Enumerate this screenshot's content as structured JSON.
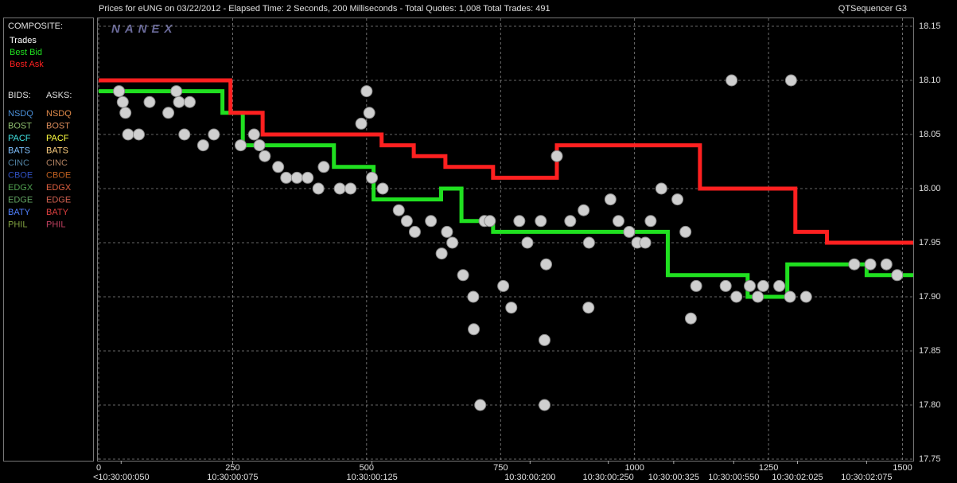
{
  "chart_data": {
    "type": "scatter",
    "title": "Prices for  eUNG  on  03/22/2012  -  Elapsed Time: 2 Seconds, 200 Milliseconds  -  Total Quotes: 1,008  Total Trades: 491",
    "subtitle": "QTSequencer G3",
    "logo": "NANEX",
    "xlim": [
      0,
      1520
    ],
    "ylim": [
      17.75,
      18.15
    ],
    "xticks": [
      0,
      250,
      500,
      750,
      1000,
      1250,
      1500
    ],
    "yticks": [
      18.15,
      {
        "value": 18.1,
        "label": "18.10"
      },
      18.05,
      {
        "value": 18.0,
        "label": "18.00"
      },
      17.95,
      {
        "value": 17.9,
        "label": "17.90"
      },
      17.85,
      {
        "value": 17.8,
        "label": "17.80"
      },
      17.75
    ],
    "x_time_labels": [
      {
        "value": 42,
        "label": "<10:30:00:050"
      },
      {
        "value": 250,
        "label": "10:30:00:075"
      },
      {
        "value": 510,
        "label": "10:30:00:125"
      },
      {
        "value": 805,
        "label": "10:30:00:200"
      },
      {
        "value": 951,
        "label": "10:30:00:250"
      },
      {
        "value": 1073,
        "label": "10:30:00:325"
      },
      {
        "value": 1185,
        "label": "10:30:00:550"
      },
      {
        "value": 1304,
        "label": "10:30:02:025"
      },
      {
        "value": 1433,
        "label": "10:30:02:075"
      }
    ],
    "grid": true,
    "legend": {
      "composite_title": "COMPOSITE:",
      "bids_title": "BIDS:",
      "asks_title": "ASKS:",
      "exchanges": [
        {
          "bid": "NSDQ",
          "ask": "NSDQ",
          "bid_color": "#4a8fd8",
          "ask_color": "#e08a4a"
        },
        {
          "bid": "BOST",
          "ask": "BOST",
          "bid_color": "#8fbf6f",
          "ask_color": "#d88a5a"
        },
        {
          "bid": "PACF",
          "ask": "PACF",
          "bid_color": "#40e0e0",
          "ask_color": "#ffff40"
        },
        {
          "bid": "BATS",
          "ask": "BATS",
          "bid_color": "#80c0ff",
          "ask_color": "#ffd080"
        },
        {
          "bid": "CINC",
          "ask": "CINC",
          "bid_color": "#5080a0",
          "ask_color": "#b08060"
        },
        {
          "bid": "CBOE",
          "ask": "CBOE",
          "bid_color": "#3050c0",
          "ask_color": "#c06020"
        },
        {
          "bid": "EDGX",
          "ask": "EDGX",
          "bid_color": "#50a050",
          "ask_color": "#e06040"
        },
        {
          "bid": "EDGE",
          "ask": "EDGE",
          "bid_color": "#60a060",
          "ask_color": "#d06050"
        },
        {
          "bid": "BATY",
          "ask": "BATY",
          "bid_color": "#5080ff",
          "ask_color": "#e04040"
        },
        {
          "bid": "PHIL",
          "ask": "PHIL",
          "bid_color": "#80a040",
          "ask_color": "#c04060"
        }
      ]
    },
    "series": [
      {
        "name": "Trades",
        "color": "#ffffff",
        "kind": "scatter",
        "x": [
          38,
          45,
          50,
          55,
          75,
          95,
          130,
          145,
          150,
          160,
          170,
          195,
          215,
          265,
          290,
          300,
          310,
          335,
          350,
          370,
          390,
          410,
          420,
          450,
          470,
          490,
          500,
          505,
          510,
          530,
          560,
          575,
          590,
          620,
          640,
          650,
          660,
          680,
          699,
          700,
          712,
          720,
          730,
          755,
          770,
          785,
          800,
          825,
          832,
          835,
          832,
          855,
          880,
          905,
          914,
          915,
          955,
          970,
          990,
          1005,
          1020,
          1030,
          1050,
          1080,
          1095,
          1115,
          1105,
          1170,
          1181,
          1190,
          1215,
          1230,
          1240,
          1270,
          1292,
          1290,
          1320,
          1410,
          1440,
          1470,
          1490
        ],
        "values": [
          18.09,
          18.08,
          18.07,
          18.05,
          18.05,
          18.08,
          18.07,
          18.09,
          18.08,
          18.05,
          18.08,
          18.04,
          18.05,
          18.04,
          18.05,
          18.04,
          18.03,
          18.02,
          18.01,
          18.01,
          18.01,
          18.0,
          18.02,
          18.0,
          18.0,
          18.06,
          18.09,
          18.07,
          18.01,
          18.0,
          17.98,
          17.97,
          17.96,
          17.97,
          17.94,
          17.96,
          17.95,
          17.92,
          17.9,
          17.87,
          17.8,
          17.97,
          17.97,
          17.91,
          17.89,
          17.97,
          17.95,
          17.97,
          17.86,
          17.93,
          17.8,
          18.03,
          17.97,
          17.98,
          17.89,
          17.95,
          17.99,
          17.97,
          17.96,
          17.95,
          17.95,
          17.97,
          18.0,
          17.99,
          17.96,
          17.91,
          17.88,
          17.91,
          18.1,
          17.9,
          17.91,
          17.9,
          17.91,
          17.91,
          18.1,
          17.9,
          17.9,
          17.93,
          17.93,
          17.93,
          17.92
        ]
      },
      {
        "name": "Best Bid",
        "color": "#20e020",
        "kind": "step",
        "x": [
          0,
          231,
          269,
          439,
          513,
          639,
          677,
          736,
          855,
          1062,
          1211,
          1285,
          1433
        ],
        "values": [
          18.09,
          18.07,
          18.04,
          18.02,
          17.99,
          18.0,
          17.97,
          17.96,
          17.96,
          17.92,
          17.9,
          17.93,
          17.92
        ]
      },
      {
        "name": "Best Ask",
        "color": "#ff2020",
        "kind": "step",
        "x": [
          0,
          246,
          306,
          528,
          588,
          647,
          736,
          855,
          1122,
          1300,
          1359
        ],
        "values": [
          18.1,
          18.07,
          18.05,
          18.04,
          18.03,
          18.02,
          18.01,
          18.04,
          18.0,
          17.96,
          17.95
        ]
      }
    ]
  }
}
